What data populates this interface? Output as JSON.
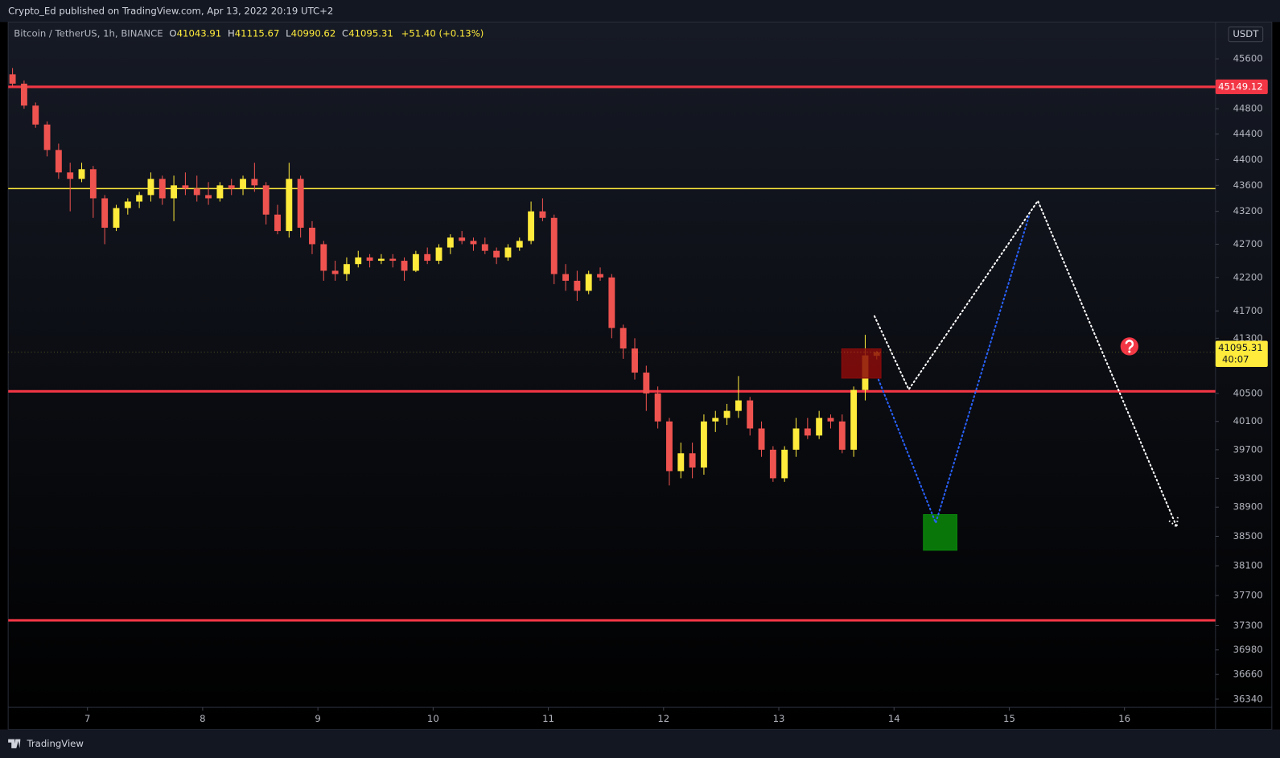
{
  "header": {
    "published": "Crypto_Ed published on TradingView.com, Apr 13, 2022 20:19 UTC+2"
  },
  "footer": {
    "brand": "TradingView"
  },
  "chart_data": {
    "type": "candlestick",
    "legend": {
      "symbol": "Bitcoin / TetherUS, 1h, BINANCE",
      "ohlc": [
        {
          "key": "O",
          "value": 41043.91
        },
        {
          "key": "H",
          "value": 41115.67
        },
        {
          "key": "L",
          "value": 40990.62
        },
        {
          "key": "C",
          "value": 41095.31
        }
      ],
      "change": "+51.40 (+0.13%)"
    },
    "currency": "USDT",
    "log_scale": true,
    "grid": false,
    "up_color": "#ffeb3b",
    "down_color": "#ef5350",
    "xlim": [
      6.312,
      16.79
    ],
    "xticks": [
      7,
      8,
      9,
      10,
      11,
      12,
      13,
      14,
      15,
      16
    ],
    "ylim": [
      36235,
      46198
    ],
    "yticks": [
      45600,
      44800,
      44400,
      44000,
      43600,
      43200,
      42700,
      42200,
      41700,
      41300,
      40500,
      40100,
      39700,
      39300,
      38900,
      38500,
      38100,
      37700,
      37300,
      36980,
      36660,
      36340
    ],
    "x": [
      6.35,
      6.45,
      6.55,
      6.65,
      6.75,
      6.85,
      6.95,
      7.05,
      7.15,
      7.25,
      7.35,
      7.45,
      7.55,
      7.65,
      7.75,
      7.85,
      7.95,
      8.05,
      8.15,
      8.25,
      8.35,
      8.45,
      8.55,
      8.65,
      8.75,
      8.85,
      8.95,
      9.05,
      9.15,
      9.25,
      9.35,
      9.45,
      9.55,
      9.65,
      9.75,
      9.85,
      9.95,
      10.05,
      10.15,
      10.25,
      10.35,
      10.45,
      10.55,
      10.65,
      10.75,
      10.85,
      10.95,
      11.05,
      11.15,
      11.25,
      11.35,
      11.45,
      11.55,
      11.65,
      11.75,
      11.85,
      11.95,
      12.05,
      12.15,
      12.25,
      12.35,
      12.45,
      12.55,
      12.65,
      12.75,
      12.85,
      12.95,
      13.05,
      13.15,
      13.25,
      13.35,
      13.45,
      13.55,
      13.65,
      13.75,
      13.85
    ],
    "open": [
      45350,
      45200,
      44850,
      44550,
      44150,
      43800,
      43700,
      43850,
      43400,
      42950,
      43250,
      43350,
      43450,
      43700,
      43400,
      43600,
      43550,
      43450,
      43400,
      43600,
      43550,
      43700,
      43600,
      43150,
      42900,
      43700,
      42950,
      42700,
      42300,
      42250,
      42400,
      42500,
      42450,
      42480,
      42450,
      42300,
      42550,
      42450,
      42650,
      42800,
      42750,
      42700,
      42600,
      42500,
      42650,
      42750,
      43200,
      43100,
      42250,
      42150,
      42000,
      42250,
      42200,
      41450,
      41150,
      40800,
      40500,
      40100,
      39400,
      39650,
      39450,
      40100,
      40150,
      40250,
      40400,
      40000,
      39700,
      39300,
      39700,
      40000,
      39900,
      40150,
      40100,
      39700,
      40550,
      41043.91
    ],
    "high": [
      45450,
      45250,
      44900,
      44600,
      44250,
      43950,
      43950,
      43900,
      43450,
      43300,
      43400,
      43500,
      43800,
      43750,
      43750,
      43800,
      43750,
      43650,
      43650,
      43700,
      43750,
      43950,
      43650,
      43300,
      43950,
      43750,
      43050,
      42750,
      42450,
      42500,
      42600,
      42550,
      42550,
      42550,
      42500,
      42600,
      42650,
      42700,
      42850,
      42900,
      42800,
      42800,
      42650,
      42700,
      42800,
      43350,
      43400,
      43150,
      42400,
      42300,
      42300,
      42350,
      42250,
      41500,
      41300,
      40900,
      40600,
      40150,
      39800,
      39800,
      40200,
      40250,
      40350,
      40750,
      40450,
      40100,
      39750,
      39750,
      40150,
      40150,
      40250,
      40200,
      40200,
      40600,
      41350,
      41115.67
    ],
    "low": [
      45150,
      44800,
      44500,
      44050,
      43700,
      43200,
      43650,
      43100,
      42700,
      42900,
      43150,
      43250,
      43350,
      43300,
      43050,
      43450,
      43350,
      43300,
      43350,
      43450,
      43450,
      43500,
      43000,
      42850,
      42800,
      42800,
      42550,
      42150,
      42150,
      42150,
      42350,
      42350,
      42400,
      42350,
      42150,
      42280,
      42400,
      42400,
      42550,
      42700,
      42600,
      42550,
      42400,
      42450,
      42600,
      42700,
      43050,
      42100,
      42000,
      41850,
      41950,
      42150,
      41300,
      41000,
      40700,
      40250,
      40000,
      39200,
      39300,
      39300,
      39350,
      39950,
      40050,
      40150,
      39900,
      39600,
      39250,
      39250,
      39600,
      39850,
      39850,
      40000,
      39650,
      39600,
      40400,
      40990.62
    ],
    "close": [
      45200,
      44850,
      44550,
      44150,
      43800,
      43700,
      43850,
      43400,
      42950,
      43250,
      43350,
      43450,
      43700,
      43400,
      43600,
      43550,
      43450,
      43400,
      43600,
      43550,
      43700,
      43600,
      43150,
      42900,
      43700,
      42950,
      42700,
      42300,
      42250,
      42400,
      42500,
      42450,
      42480,
      42450,
      42300,
      42550,
      42450,
      42650,
      42800,
      42750,
      42700,
      42600,
      42500,
      42650,
      42750,
      43200,
      43100,
      42250,
      42150,
      42000,
      42250,
      42200,
      41450,
      41150,
      40800,
      40500,
      40100,
      39400,
      39650,
      39450,
      40100,
      40150,
      40250,
      40400,
      40000,
      39700,
      39300,
      39700,
      40000,
      39900,
      40150,
      40100,
      39700,
      40550,
      41050,
      41095.31
    ],
    "hlines": [
      {
        "value": 45149.12,
        "color": "#f23645",
        "label_shown": true
      },
      {
        "value": 43550,
        "color": "#ffeb3b",
        "label_shown": false
      },
      {
        "value": 40530,
        "color": "#f23645",
        "label_shown": false
      },
      {
        "value": 37370,
        "color": "#f23645",
        "label_shown": false
      }
    ],
    "last_price": 41095.31,
    "countdown": "40:07",
    "drawings": {
      "boxes": [
        {
          "x": [
            13.546,
            13.887
          ],
          "y": [
            40720,
            41145
          ],
          "color": "#8b0c0c"
        },
        {
          "x": [
            14.255,
            14.546
          ],
          "y": [
            38310,
            38797
          ],
          "color": "#0a8a0a"
        }
      ],
      "paths": [
        {
          "color": "#ffffff",
          "x": [
            13.83,
            14.128,
            15.248,
            16.454
          ],
          "y": [
            41625,
            40557,
            43361,
            38628
          ],
          "arrow": true
        },
        {
          "color": "#2962ff",
          "x": [
            13.865,
            14.362,
            15.177
          ],
          "y": [
            40700,
            38682,
            43160
          ],
          "arrow": false
        }
      ],
      "icons": [
        {
          "x": 16.043,
          "y": 41181,
          "color": "#f23645"
        }
      ]
    }
  }
}
